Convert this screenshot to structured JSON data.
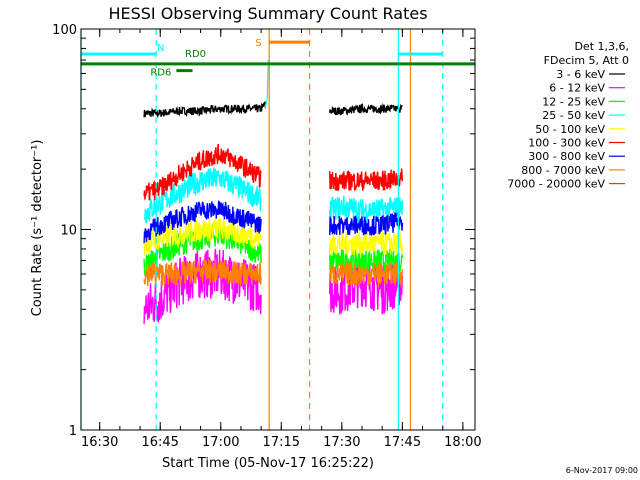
{
  "chart_data": {
    "type": "line",
    "title": "HESSI Observing Summary Count Rates",
    "xlabel": "Start Time (05-Nov-17 16:25:22)",
    "ylabel": "Count Rate (s⁻¹ detector⁻¹)",
    "yscale": "log",
    "ylim": [
      1,
      100
    ],
    "xlim": [
      "16:25:22",
      "18:03:00"
    ],
    "x_ticks": [
      "16:30",
      "16:45",
      "17:00",
      "17:15",
      "17:30",
      "17:45",
      "18:00"
    ],
    "y_ticks": [
      "1",
      "10",
      "100"
    ],
    "grid": false,
    "legend_position": "right",
    "legend_header": [
      "Det 1,3,6,",
      "FDecim 5, Att 0"
    ],
    "timestamp": "6-Nov-2017 09:00",
    "series": [
      {
        "name": "3 - 6 keV",
        "color": "#000000",
        "segments": [
          {
            "x": [
              "16:41",
              "16:45",
              "16:50",
              "16:55",
              "17:00",
              "17:05",
              "17:10",
              "17:11"
            ],
            "y": [
              38,
              38,
              39,
              39,
              40,
              40,
              40,
              42
            ]
          },
          {
            "x": [
              "17:27",
              "17:30",
              "17:35",
              "17:40",
              "17:45"
            ],
            "y": [
              39,
              39,
              40,
              40,
              40
            ]
          }
        ]
      },
      {
        "name": "6 - 12 keV",
        "color": "#ff00ff",
        "segments": [
          {
            "x": [
              "16:41",
              "16:45",
              "16:50",
              "16:55",
              "17:00",
              "17:05",
              "17:10"
            ],
            "y": [
              4,
              4.5,
              5.5,
              6,
              6,
              5.5,
              5
            ]
          },
          {
            "x": [
              "17:27",
              "17:30",
              "17:35",
              "17:40",
              "17:45"
            ],
            "y": [
              5,
              5,
              5.5,
              5,
              5.5
            ]
          }
        ]
      },
      {
        "name": "12 - 25 keV",
        "color": "#00ff00",
        "segments": [
          {
            "x": [
              "16:41",
              "16:45",
              "16:50",
              "16:55",
              "17:00",
              "17:05",
              "17:10"
            ],
            "y": [
              6.5,
              7.5,
              8.5,
              9,
              9.5,
              8.5,
              7.5
            ]
          },
          {
            "x": [
              "17:27",
              "17:30",
              "17:35",
              "17:40",
              "17:45"
            ],
            "y": [
              7,
              7,
              7,
              7,
              7
            ]
          }
        ]
      },
      {
        "name": "25 - 50 keV",
        "color": "#00ffff",
        "segments": [
          {
            "x": [
              "16:41",
              "16:45",
              "16:50",
              "16:55",
              "17:00",
              "17:05",
              "17:10"
            ],
            "y": [
              12,
              13.5,
              15.5,
              17.5,
              18,
              16,
              14
            ]
          },
          {
            "x": [
              "17:27",
              "17:30",
              "17:35",
              "17:40",
              "17:45"
            ],
            "y": [
              12.5,
              13,
              12.5,
              12.5,
              13
            ]
          }
        ]
      },
      {
        "name": "50 - 100 keV",
        "color": "#ffff00",
        "segments": [
          {
            "x": [
              "16:41",
              "16:45",
              "16:50",
              "16:55",
              "17:00",
              "17:05",
              "17:10"
            ],
            "y": [
              8.5,
              9,
              9.5,
              10,
              10,
              9.5,
              9
            ]
          },
          {
            "x": [
              "17:27",
              "17:30",
              "17:35",
              "17:40",
              "17:45"
            ],
            "y": [
              8.5,
              8.5,
              8.5,
              8.5,
              8.5
            ]
          }
        ]
      },
      {
        "name": "100 - 300 keV",
        "color": "#ff0000",
        "segments": [
          {
            "x": [
              "16:41",
              "16:45",
              "16:50",
              "16:55",
              "17:00",
              "17:05",
              "17:10"
            ],
            "y": [
              15,
              16,
              19,
              22,
              24,
              21,
              18
            ]
          },
          {
            "x": [
              "17:27",
              "17:30",
              "17:35",
              "17:40",
              "17:45"
            ],
            "y": [
              17.5,
              17.5,
              17.5,
              17.5,
              18
            ]
          }
        ]
      },
      {
        "name": "300 - 800 keV",
        "color": "#0000ff",
        "segments": [
          {
            "x": [
              "16:41",
              "16:45",
              "16:50",
              "16:55",
              "17:00",
              "17:05",
              "17:10"
            ],
            "y": [
              9.5,
              10.5,
              11.5,
              12.5,
              12.5,
              11.5,
              10.5
            ]
          },
          {
            "x": [
              "17:27",
              "17:30",
              "17:35",
              "17:40",
              "17:45"
            ],
            "y": [
              10.5,
              10.5,
              10.5,
              10.5,
              11
            ]
          }
        ]
      },
      {
        "name": "800 - 7000 keV",
        "color": "#ff8000",
        "segments": [
          {
            "x": [
              "16:41",
              "16:45",
              "16:50",
              "16:55",
              "17:00",
              "17:05",
              "17:10"
            ],
            "y": [
              6,
              6,
              6,
              6.2,
              6.2,
              6,
              6
            ]
          },
          {
            "x": [
              "17:27",
              "17:30",
              "17:35",
              "17:40",
              "17:45"
            ],
            "y": [
              6,
              6,
              6,
              6,
              6
            ]
          }
        ]
      },
      {
        "name": "7000 - 20000 keV",
        "color": "#996600",
        "segments": []
      }
    ],
    "attenuator_bars": [
      {
        "label": "N",
        "color": "#00ffff",
        "x": [
          "16:25:22",
          "16:44"
        ],
        "y": 75
      },
      {
        "label": "N",
        "color": "#00ffff",
        "x": [
          "17:44",
          "17:55"
        ],
        "y": 75
      },
      {
        "label": "S",
        "color": "#ff8000",
        "x": [
          "17:12",
          "17:22"
        ],
        "y": 86
      },
      {
        "label": "RD0",
        "color": "#008000",
        "x": [
          "16:25:22",
          "18:03:00"
        ],
        "y": 67
      },
      {
        "label": "RD6",
        "color": "#008000",
        "x": [
          "16:49",
          "16:53"
        ],
        "y": 62
      }
    ],
    "vertical_lines": [
      {
        "x": "16:25:22",
        "color": "#00ffff",
        "style": "solid"
      },
      {
        "x": "16:44",
        "color": "#00ffff",
        "style": "dashed"
      },
      {
        "x": "17:12",
        "color": "#ff8000",
        "style": "solid"
      },
      {
        "x": "17:22",
        "color": "#ff8000",
        "style": "dashed"
      },
      {
        "x": "17:44",
        "color": "#00ffff",
        "style": "solid"
      },
      {
        "x": "17:47",
        "color": "#ff8000",
        "style": "solid"
      },
      {
        "x": "17:55",
        "color": "#00ffff",
        "style": "dashed"
      }
    ]
  }
}
